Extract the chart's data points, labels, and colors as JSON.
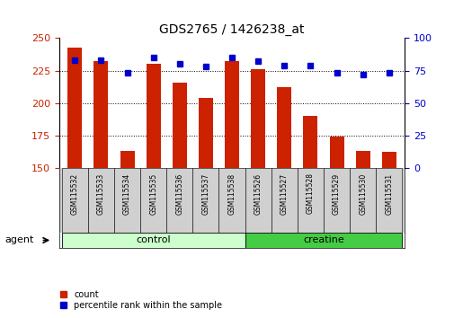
{
  "title": "GDS2765 / 1426238_at",
  "samples": [
    "GSM115532",
    "GSM115533",
    "GSM115534",
    "GSM115535",
    "GSM115536",
    "GSM115537",
    "GSM115538",
    "GSM115526",
    "GSM115527",
    "GSM115528",
    "GSM115529",
    "GSM115530",
    "GSM115531"
  ],
  "counts": [
    243,
    232,
    163,
    230,
    216,
    204,
    232,
    226,
    212,
    190,
    174,
    163,
    162
  ],
  "percentiles": [
    83,
    83,
    73,
    85,
    80,
    78,
    85,
    82,
    79,
    79,
    73,
    72,
    73
  ],
  "control_indices": [
    0,
    1,
    2,
    3,
    4,
    5,
    6
  ],
  "creatine_indices": [
    7,
    8,
    9,
    10,
    11,
    12
  ],
  "ylim_left": [
    150,
    250
  ],
  "ylim_right": [
    0,
    100
  ],
  "yticks_left": [
    150,
    175,
    200,
    225,
    250
  ],
  "yticks_right": [
    0,
    25,
    50,
    75,
    100
  ],
  "bar_color": "#cc2200",
  "dot_color": "#0000cc",
  "control_color": "#ccffcc",
  "creatine_color": "#44cc44",
  "grid_color": "#000000",
  "tick_label_color_left": "#cc2200",
  "tick_label_color_right": "#0000cc",
  "bar_width": 0.55,
  "legend_items": [
    "count",
    "percentile rank within the sample"
  ],
  "agent_label": "agent"
}
